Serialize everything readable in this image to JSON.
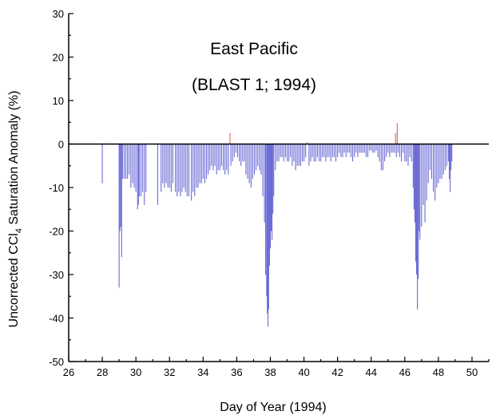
{
  "chart_data": {
    "type": "bar",
    "title_lines": [
      "East Pacific",
      "(BLAST 1; 1994)"
    ],
    "xlabel": "Day of Year (1994)",
    "ylabel_parts": [
      "Uncorrected CCl",
      "4",
      " Saturation Anomaly (%)"
    ],
    "xlim": [
      26,
      51
    ],
    "ylim": [
      -50,
      30
    ],
    "xticks": [
      26,
      28,
      30,
      32,
      34,
      36,
      38,
      40,
      42,
      44,
      46,
      48,
      50
    ],
    "yticks": [
      -50,
      -40,
      -30,
      -20,
      -10,
      0,
      10,
      20,
      30
    ],
    "grid": false,
    "colors": {
      "negative": "#6a6ad6",
      "positive": "#e06060",
      "zero_line": "#000000"
    },
    "series": [
      {
        "values": [
          [
            28.0,
            -9
          ],
          [
            29.0,
            -33
          ],
          [
            29.05,
            -20
          ],
          [
            29.1,
            -19
          ],
          [
            29.15,
            -26
          ],
          [
            29.2,
            -8
          ],
          [
            29.3,
            -8
          ],
          [
            29.4,
            -8
          ],
          [
            29.5,
            -8
          ],
          [
            29.6,
            -7
          ],
          [
            29.7,
            -10
          ],
          [
            29.8,
            -9
          ],
          [
            29.9,
            -10
          ],
          [
            30.0,
            -11
          ],
          [
            30.1,
            -15
          ],
          [
            30.15,
            -14
          ],
          [
            30.2,
            -12
          ],
          [
            30.3,
            -12
          ],
          [
            30.4,
            -11
          ],
          [
            30.5,
            -14
          ],
          [
            30.6,
            -11
          ],
          [
            31.3,
            -14
          ],
          [
            31.5,
            -11
          ],
          [
            31.6,
            -9
          ],
          [
            31.7,
            -10
          ],
          [
            31.8,
            -9
          ],
          [
            31.9,
            -10
          ],
          [
            32.0,
            -10
          ],
          [
            32.1,
            -11
          ],
          [
            32.2,
            -9
          ],
          [
            32.35,
            -11
          ],
          [
            32.45,
            -12
          ],
          [
            32.55,
            -11
          ],
          [
            32.65,
            -12
          ],
          [
            32.75,
            -11
          ],
          [
            32.85,
            -10
          ],
          [
            32.95,
            -11
          ],
          [
            33.05,
            -12
          ],
          [
            33.15,
            -12
          ],
          [
            33.3,
            -13
          ],
          [
            33.4,
            -11
          ],
          [
            33.5,
            -12
          ],
          [
            33.6,
            -10
          ],
          [
            33.7,
            -10
          ],
          [
            33.8,
            -9
          ],
          [
            33.9,
            -9
          ],
          [
            34.0,
            -8
          ],
          [
            34.1,
            -9
          ],
          [
            34.2,
            -8
          ],
          [
            34.3,
            -7
          ],
          [
            34.4,
            -6
          ],
          [
            34.5,
            -5
          ],
          [
            34.6,
            -6
          ],
          [
            34.7,
            -5
          ],
          [
            34.8,
            -7
          ],
          [
            34.9,
            -6
          ],
          [
            35.0,
            -6
          ],
          [
            35.1,
            -5
          ],
          [
            35.2,
            -6
          ],
          [
            35.3,
            -7
          ],
          [
            35.4,
            -6
          ],
          [
            35.5,
            -7
          ],
          [
            35.6,
            2.5
          ],
          [
            35.65,
            -5
          ],
          [
            35.75,
            -4
          ],
          [
            35.85,
            -3
          ],
          [
            35.95,
            -2
          ],
          [
            36.05,
            -3
          ],
          [
            36.15,
            -4
          ],
          [
            36.25,
            -5
          ],
          [
            36.35,
            -4
          ],
          [
            36.45,
            -4
          ],
          [
            36.55,
            -7
          ],
          [
            36.65,
            -8
          ],
          [
            36.75,
            -9
          ],
          [
            36.85,
            -10
          ],
          [
            36.95,
            -8
          ],
          [
            37.05,
            -7
          ],
          [
            37.15,
            -6
          ],
          [
            37.25,
            -5
          ],
          [
            37.35,
            -6
          ],
          [
            37.45,
            -7
          ],
          [
            37.55,
            -12
          ],
          [
            37.65,
            -18
          ],
          [
            37.72,
            -30
          ],
          [
            37.78,
            -35
          ],
          [
            37.82,
            -39
          ],
          [
            37.86,
            -42
          ],
          [
            37.9,
            -38
          ],
          [
            37.95,
            -28
          ],
          [
            38.0,
            -24
          ],
          [
            38.05,
            -20
          ],
          [
            38.1,
            -22
          ],
          [
            38.15,
            -16
          ],
          [
            38.2,
            -12
          ],
          [
            38.3,
            -6
          ],
          [
            38.4,
            -4
          ],
          [
            38.5,
            -4
          ],
          [
            38.6,
            -3
          ],
          [
            38.7,
            -3
          ],
          [
            38.8,
            -4
          ],
          [
            38.9,
            -3
          ],
          [
            39.0,
            -4
          ],
          [
            39.1,
            -4
          ],
          [
            39.2,
            -3
          ],
          [
            39.3,
            -5
          ],
          [
            39.4,
            -4
          ],
          [
            39.5,
            -6
          ],
          [
            39.6,
            -5
          ],
          [
            39.7,
            -5
          ],
          [
            39.8,
            -5
          ],
          [
            39.9,
            -4
          ],
          [
            40.0,
            -4
          ],
          [
            40.1,
            -3
          ],
          [
            40.2,
            0.4
          ],
          [
            40.3,
            -5
          ],
          [
            40.4,
            -4
          ],
          [
            40.5,
            -3
          ],
          [
            40.6,
            -4
          ],
          [
            40.7,
            -4
          ],
          [
            40.8,
            -3
          ],
          [
            40.9,
            -4
          ],
          [
            41.0,
            -4
          ],
          [
            41.1,
            -3
          ],
          [
            41.2,
            -3
          ],
          [
            41.3,
            -4
          ],
          [
            41.4,
            -3
          ],
          [
            41.5,
            -3
          ],
          [
            41.6,
            -4
          ],
          [
            41.7,
            -3
          ],
          [
            41.8,
            -3
          ],
          [
            41.9,
            -4
          ],
          [
            42.0,
            -3
          ],
          [
            42.1,
            -2
          ],
          [
            42.2,
            -3
          ],
          [
            42.3,
            -3
          ],
          [
            42.4,
            -2
          ],
          [
            42.5,
            -3
          ],
          [
            42.6,
            -2
          ],
          [
            42.7,
            -2
          ],
          [
            42.8,
            -3
          ],
          [
            42.9,
            -4
          ],
          [
            43.0,
            -3
          ],
          [
            43.1,
            -2
          ],
          [
            43.2,
            -3
          ],
          [
            43.3,
            -2
          ],
          [
            43.4,
            -2
          ],
          [
            43.5,
            -2
          ],
          [
            43.6,
            -2
          ],
          [
            43.7,
            -3
          ],
          [
            43.8,
            -3
          ],
          [
            43.9,
            -1.5
          ],
          [
            44.0,
            -1.5
          ],
          [
            44.1,
            -2
          ],
          [
            44.2,
            -2
          ],
          [
            44.3,
            -1.5
          ],
          [
            44.4,
            -3
          ],
          [
            44.5,
            -4
          ],
          [
            44.6,
            -6
          ],
          [
            44.7,
            -6
          ],
          [
            44.8,
            -4
          ],
          [
            44.9,
            -3
          ],
          [
            45.0,
            -2
          ],
          [
            45.1,
            -3
          ],
          [
            45.2,
            -2
          ],
          [
            45.3,
            -2
          ],
          [
            45.4,
            -2
          ],
          [
            45.45,
            2.5
          ],
          [
            45.5,
            -3
          ],
          [
            45.55,
            4.8
          ],
          [
            45.6,
            -2
          ],
          [
            45.7,
            -3
          ],
          [
            45.8,
            -4
          ],
          [
            45.9,
            -2
          ],
          [
            46.0,
            -4
          ],
          [
            46.1,
            -4
          ],
          [
            46.2,
            -5
          ],
          [
            46.3,
            -3
          ],
          [
            46.4,
            -4
          ],
          [
            46.5,
            -10
          ],
          [
            46.55,
            -15
          ],
          [
            46.6,
            -18
          ],
          [
            46.65,
            -27
          ],
          [
            46.7,
            -30
          ],
          [
            46.75,
            -38
          ],
          [
            46.8,
            -31
          ],
          [
            46.85,
            -20
          ],
          [
            46.9,
            -22
          ],
          [
            47.0,
            -19
          ],
          [
            47.1,
            -14
          ],
          [
            47.2,
            -18
          ],
          [
            47.3,
            -13
          ],
          [
            47.4,
            -9
          ],
          [
            47.5,
            -6
          ],
          [
            47.6,
            -8
          ],
          [
            47.7,
            -11
          ],
          [
            47.8,
            -13
          ],
          [
            47.9,
            -10
          ],
          [
            48.0,
            -9
          ],
          [
            48.1,
            -8
          ],
          [
            48.2,
            -8
          ],
          [
            48.3,
            -7
          ],
          [
            48.4,
            -6
          ],
          [
            48.5,
            -5
          ],
          [
            48.6,
            -4
          ],
          [
            48.65,
            -8
          ],
          [
            48.7,
            -11
          ],
          [
            48.75,
            -6
          ],
          [
            48.8,
            -4
          ]
        ]
      }
    ]
  }
}
